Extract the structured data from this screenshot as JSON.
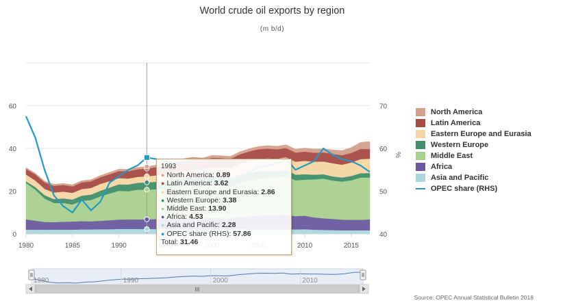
{
  "title": "World crude oil exports by region",
  "subtitle": "(m b/d)",
  "source": "Source: OPEC Annual Statistical Bulletin 2018",
  "chart_data": {
    "type": "area",
    "stacked": true,
    "title": "World crude oil exports by region",
    "subtitle": "(m b/d)",
    "x": [
      1980,
      1981,
      1982,
      1983,
      1984,
      1985,
      1986,
      1987,
      1988,
      1989,
      1990,
      1991,
      1992,
      1993,
      1994,
      1995,
      1996,
      1997,
      1998,
      1999,
      2000,
      2001,
      2002,
      2003,
      2004,
      2005,
      2006,
      2007,
      2008,
      2009,
      2010,
      2011,
      2012,
      2013,
      2014,
      2015,
      2016,
      2017
    ],
    "xlim": [
      1980,
      2017
    ],
    "x_ticks": [
      "1980",
      "1985",
      "1990",
      "1995",
      "2000",
      "2005",
      "2010",
      "2015"
    ],
    "ylim_left": [
      0,
      80
    ],
    "y_ticks_left": [
      "0",
      "20",
      "40",
      "60"
    ],
    "ylim_right": [
      40,
      80
    ],
    "y_ticks_right": [
      "40",
      "50",
      "60",
      "70"
    ],
    "ylabel_right": "%",
    "series": [
      {
        "name": "Asia and Pacific",
        "color": "#a8d8dc",
        "values": [
          2.0,
          2.0,
          2.0,
          2.0,
          2.0,
          2.0,
          2.1,
          2.1,
          2.2,
          2.2,
          2.3,
          2.3,
          2.3,
          2.28,
          2.3,
          2.3,
          2.3,
          2.2,
          2.2,
          2.2,
          2.2,
          2.2,
          2.2,
          2.3,
          2.2,
          2.2,
          2.2,
          2.2,
          2.2,
          2.1,
          2.2,
          2.0,
          1.9,
          1.8,
          1.7,
          1.7,
          1.7,
          1.7
        ]
      },
      {
        "name": "Africa",
        "color": "#6b5a9e",
        "values": [
          4.8,
          4.2,
          3.6,
          3.5,
          3.7,
          3.8,
          3.9,
          3.8,
          3.9,
          4.2,
          4.4,
          4.5,
          4.5,
          4.53,
          4.6,
          4.7,
          4.9,
          5.1,
          5.2,
          5.1,
          5.4,
          5.2,
          5.1,
          5.6,
          6.1,
          6.4,
          6.5,
          6.6,
          6.7,
          6.2,
          6.3,
          5.7,
          5.4,
          5.2,
          5.0,
          4.9,
          4.9,
          5.1
        ]
      },
      {
        "name": "Middle East",
        "color": "#a9d18e",
        "values": [
          17.0,
          14.5,
          11.0,
          9.0,
          8.8,
          8.0,
          9.5,
          10.0,
          11.5,
          12.5,
          13.5,
          13.2,
          13.9,
          13.9,
          14.0,
          14.2,
          14.5,
          15.0,
          15.5,
          15.2,
          15.8,
          15.6,
          14.8,
          15.9,
          16.5,
          17.2,
          17.6,
          17.4,
          18.3,
          16.8,
          16.9,
          17.8,
          18.6,
          18.0,
          17.8,
          18.5,
          19.8,
          19.6
        ]
      },
      {
        "name": "Western Europe",
        "color": "#3f8f6a",
        "values": [
          0.8,
          1.2,
          1.5,
          1.8,
          2.1,
          2.3,
          2.4,
          2.5,
          2.6,
          2.8,
          3.0,
          3.1,
          3.2,
          3.38,
          3.5,
          3.6,
          3.8,
          3.8,
          3.7,
          3.8,
          3.8,
          3.8,
          3.9,
          3.8,
          3.7,
          3.4,
          3.2,
          3.0,
          2.8,
          2.6,
          2.5,
          2.2,
          2.0,
          1.9,
          1.9,
          2.0,
          2.0,
          2.1
        ]
      },
      {
        "name": "Eastern Europe and Eurasia",
        "color": "#f5d5a3",
        "values": [
          3.2,
          3.1,
          3.0,
          3.1,
          3.2,
          3.1,
          3.1,
          3.1,
          3.2,
          3.0,
          2.9,
          2.8,
          2.8,
          2.86,
          3.0,
          3.1,
          3.3,
          3.4,
          3.6,
          3.8,
          4.0,
          4.3,
          4.8,
          5.2,
          5.6,
          5.8,
          5.9,
          6.0,
          5.9,
          6.1,
          6.3,
          6.1,
          6.0,
          6.2,
          6.0,
          6.3,
          6.6,
          6.7
        ]
      },
      {
        "name": "Latin America",
        "color": "#a94a45",
        "values": [
          2.6,
          2.8,
          3.0,
          3.1,
          3.1,
          3.0,
          3.1,
          3.1,
          3.1,
          3.2,
          3.3,
          3.4,
          3.5,
          3.62,
          3.8,
          4.0,
          4.3,
          4.6,
          4.6,
          4.3,
          4.4,
          4.4,
          4.3,
          4.4,
          4.5,
          4.6,
          4.5,
          4.4,
          4.3,
          4.2,
          4.3,
          4.2,
          4.2,
          4.3,
          4.4,
          4.5,
          4.7,
          4.5
        ]
      },
      {
        "name": "North America",
        "color": "#d4a08a",
        "values": [
          0.6,
          0.6,
          0.6,
          0.7,
          0.7,
          0.8,
          0.8,
          0.8,
          0.8,
          0.9,
          0.9,
          0.9,
          0.9,
          0.89,
          1.0,
          1.0,
          1.1,
          1.1,
          1.1,
          1.1,
          1.1,
          1.1,
          1.2,
          1.2,
          1.2,
          1.3,
          1.4,
          1.4,
          1.5,
          1.6,
          1.7,
          1.7,
          1.7,
          1.9,
          2.2,
          2.5,
          3.1,
          3.5
        ]
      }
    ],
    "line_series": {
      "name": "OPEC share (RHS)",
      "color": "#1f9bc4",
      "axis": "right",
      "values": [
        67.5,
        62.5,
        55.0,
        49.0,
        46.5,
        45.0,
        48.0,
        45.5,
        47.5,
        52.0,
        53.5,
        55.0,
        56.0,
        57.86,
        57.5,
        57.0,
        56.5,
        57.0,
        56.0,
        55.0,
        53.5,
        53.0,
        51.5,
        53.0,
        54.5,
        55.5,
        56.0,
        56.5,
        57.5,
        55.0,
        56.0,
        57.0,
        60.0,
        58.5,
        57.5,
        57.0,
        56.0,
        54.5
      ]
    },
    "legend": "right",
    "grid": true,
    "tooltip": {
      "year": "1993",
      "rows": [
        {
          "label": "North America",
          "value": "0.89",
          "color": "#d4a08a"
        },
        {
          "label": "Latin America",
          "value": "3.62",
          "color": "#a94a45"
        },
        {
          "label": "Eastern Europe and Eurasia",
          "value": "2.86",
          "color": "#f5d5a3"
        },
        {
          "label": "Western Europe",
          "value": "3.38",
          "color": "#3f8f6a"
        },
        {
          "label": "Middle East",
          "value": "13.90",
          "color": "#a9d18e"
        },
        {
          "label": "Africa",
          "value": "4.53",
          "color": "#6b5a9e"
        },
        {
          "label": "Asia and Pacific",
          "value": "2.28",
          "color": "#a8d8dc"
        },
        {
          "label": "OPEC share (RHS)",
          "value": "57.86",
          "color": "#1f9bc4"
        }
      ],
      "total_label": "Total:",
      "total_value": "31.46"
    },
    "navigator": {
      "x_ticks": [
        "1980",
        "1990",
        "2000",
        "2010"
      ],
      "scroll_grip": "III"
    }
  },
  "legend_items": [
    {
      "label": "North America",
      "color": "#d4a08a",
      "kind": "area"
    },
    {
      "label": "Latin America",
      "color": "#a94a45",
      "kind": "area"
    },
    {
      "label": "Eastern Europe and Eurasia",
      "color": "#f5d5a3",
      "kind": "area"
    },
    {
      "label": "Western Europe",
      "color": "#3f8f6a",
      "kind": "area"
    },
    {
      "label": "Middle East",
      "color": "#a9d18e",
      "kind": "area"
    },
    {
      "label": "Africa",
      "color": "#6b5a9e",
      "kind": "area"
    },
    {
      "label": "Asia and Pacific",
      "color": "#a8d8dc",
      "kind": "area"
    },
    {
      "label": "OPEC share (RHS)",
      "color": "#1f9bc4",
      "kind": "line"
    }
  ]
}
